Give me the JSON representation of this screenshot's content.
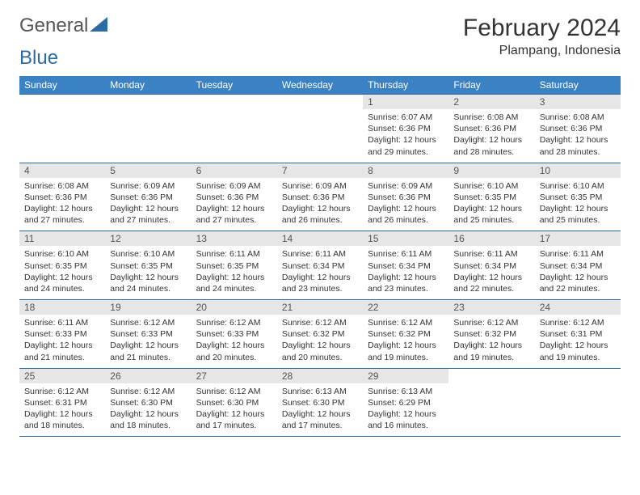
{
  "brand": {
    "part1": "General",
    "part2": "Blue"
  },
  "title": "February 2024",
  "location": "Plampang, Indonesia",
  "colors": {
    "header_bg": "#3b82c4",
    "header_text": "#ffffff",
    "border": "#2d6ca2",
    "daynum_bg": "#e6e6e6",
    "text": "#333333"
  },
  "day_headers": [
    "Sunday",
    "Monday",
    "Tuesday",
    "Wednesday",
    "Thursday",
    "Friday",
    "Saturday"
  ],
  "weeks": [
    [
      {
        "empty": true
      },
      {
        "empty": true
      },
      {
        "empty": true
      },
      {
        "empty": true
      },
      {
        "num": "1",
        "sunrise": "Sunrise: 6:07 AM",
        "sunset": "Sunset: 6:36 PM",
        "daylight": "Daylight: 12 hours and 29 minutes."
      },
      {
        "num": "2",
        "sunrise": "Sunrise: 6:08 AM",
        "sunset": "Sunset: 6:36 PM",
        "daylight": "Daylight: 12 hours and 28 minutes."
      },
      {
        "num": "3",
        "sunrise": "Sunrise: 6:08 AM",
        "sunset": "Sunset: 6:36 PM",
        "daylight": "Daylight: 12 hours and 28 minutes."
      }
    ],
    [
      {
        "num": "4",
        "sunrise": "Sunrise: 6:08 AM",
        "sunset": "Sunset: 6:36 PM",
        "daylight": "Daylight: 12 hours and 27 minutes."
      },
      {
        "num": "5",
        "sunrise": "Sunrise: 6:09 AM",
        "sunset": "Sunset: 6:36 PM",
        "daylight": "Daylight: 12 hours and 27 minutes."
      },
      {
        "num": "6",
        "sunrise": "Sunrise: 6:09 AM",
        "sunset": "Sunset: 6:36 PM",
        "daylight": "Daylight: 12 hours and 27 minutes."
      },
      {
        "num": "7",
        "sunrise": "Sunrise: 6:09 AM",
        "sunset": "Sunset: 6:36 PM",
        "daylight": "Daylight: 12 hours and 26 minutes."
      },
      {
        "num": "8",
        "sunrise": "Sunrise: 6:09 AM",
        "sunset": "Sunset: 6:36 PM",
        "daylight": "Daylight: 12 hours and 26 minutes."
      },
      {
        "num": "9",
        "sunrise": "Sunrise: 6:10 AM",
        "sunset": "Sunset: 6:35 PM",
        "daylight": "Daylight: 12 hours and 25 minutes."
      },
      {
        "num": "10",
        "sunrise": "Sunrise: 6:10 AM",
        "sunset": "Sunset: 6:35 PM",
        "daylight": "Daylight: 12 hours and 25 minutes."
      }
    ],
    [
      {
        "num": "11",
        "sunrise": "Sunrise: 6:10 AM",
        "sunset": "Sunset: 6:35 PM",
        "daylight": "Daylight: 12 hours and 24 minutes."
      },
      {
        "num": "12",
        "sunrise": "Sunrise: 6:10 AM",
        "sunset": "Sunset: 6:35 PM",
        "daylight": "Daylight: 12 hours and 24 minutes."
      },
      {
        "num": "13",
        "sunrise": "Sunrise: 6:11 AM",
        "sunset": "Sunset: 6:35 PM",
        "daylight": "Daylight: 12 hours and 24 minutes."
      },
      {
        "num": "14",
        "sunrise": "Sunrise: 6:11 AM",
        "sunset": "Sunset: 6:34 PM",
        "daylight": "Daylight: 12 hours and 23 minutes."
      },
      {
        "num": "15",
        "sunrise": "Sunrise: 6:11 AM",
        "sunset": "Sunset: 6:34 PM",
        "daylight": "Daylight: 12 hours and 23 minutes."
      },
      {
        "num": "16",
        "sunrise": "Sunrise: 6:11 AM",
        "sunset": "Sunset: 6:34 PM",
        "daylight": "Daylight: 12 hours and 22 minutes."
      },
      {
        "num": "17",
        "sunrise": "Sunrise: 6:11 AM",
        "sunset": "Sunset: 6:34 PM",
        "daylight": "Daylight: 12 hours and 22 minutes."
      }
    ],
    [
      {
        "num": "18",
        "sunrise": "Sunrise: 6:11 AM",
        "sunset": "Sunset: 6:33 PM",
        "daylight": "Daylight: 12 hours and 21 minutes."
      },
      {
        "num": "19",
        "sunrise": "Sunrise: 6:12 AM",
        "sunset": "Sunset: 6:33 PM",
        "daylight": "Daylight: 12 hours and 21 minutes."
      },
      {
        "num": "20",
        "sunrise": "Sunrise: 6:12 AM",
        "sunset": "Sunset: 6:33 PM",
        "daylight": "Daylight: 12 hours and 20 minutes."
      },
      {
        "num": "21",
        "sunrise": "Sunrise: 6:12 AM",
        "sunset": "Sunset: 6:32 PM",
        "daylight": "Daylight: 12 hours and 20 minutes."
      },
      {
        "num": "22",
        "sunrise": "Sunrise: 6:12 AM",
        "sunset": "Sunset: 6:32 PM",
        "daylight": "Daylight: 12 hours and 19 minutes."
      },
      {
        "num": "23",
        "sunrise": "Sunrise: 6:12 AM",
        "sunset": "Sunset: 6:32 PM",
        "daylight": "Daylight: 12 hours and 19 minutes."
      },
      {
        "num": "24",
        "sunrise": "Sunrise: 6:12 AM",
        "sunset": "Sunset: 6:31 PM",
        "daylight": "Daylight: 12 hours and 19 minutes."
      }
    ],
    [
      {
        "num": "25",
        "sunrise": "Sunrise: 6:12 AM",
        "sunset": "Sunset: 6:31 PM",
        "daylight": "Daylight: 12 hours and 18 minutes."
      },
      {
        "num": "26",
        "sunrise": "Sunrise: 6:12 AM",
        "sunset": "Sunset: 6:30 PM",
        "daylight": "Daylight: 12 hours and 18 minutes."
      },
      {
        "num": "27",
        "sunrise": "Sunrise: 6:12 AM",
        "sunset": "Sunset: 6:30 PM",
        "daylight": "Daylight: 12 hours and 17 minutes."
      },
      {
        "num": "28",
        "sunrise": "Sunrise: 6:13 AM",
        "sunset": "Sunset: 6:30 PM",
        "daylight": "Daylight: 12 hours and 17 minutes."
      },
      {
        "num": "29",
        "sunrise": "Sunrise: 6:13 AM",
        "sunset": "Sunset: 6:29 PM",
        "daylight": "Daylight: 12 hours and 16 minutes."
      },
      {
        "empty": true
      },
      {
        "empty": true
      }
    ]
  ]
}
